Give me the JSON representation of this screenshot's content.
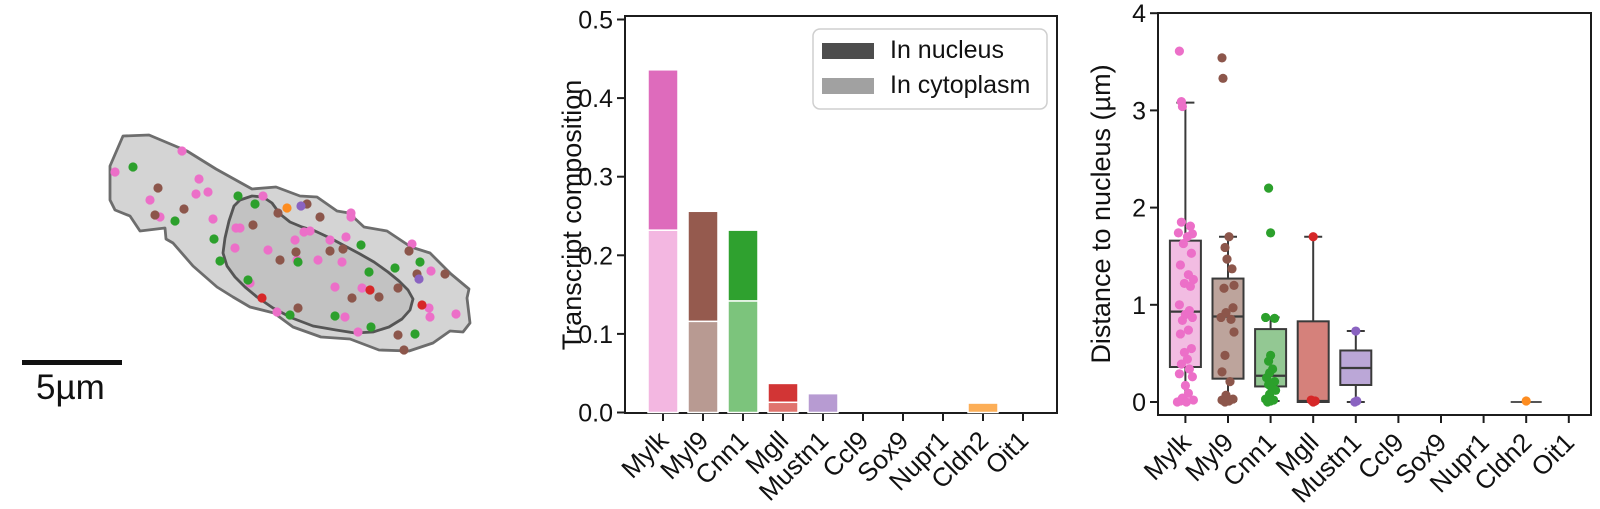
{
  "cell_panel": {
    "scalebar_label": "5µm",
    "membrane_fill": "#d4d4d4",
    "membrane_stroke": "#6d6d6d",
    "nucleus_fill": "#c2c2c2",
    "nucleus_stroke": "#555555",
    "dot_colors": {
      "Mylk": "#ec6fc8",
      "Myl9": "#8c564b",
      "Cnn1": "#2ca02c",
      "Mgll": "#d62728",
      "Mustn1": "#8a63c1",
      "Cldn2": "#fd8c20"
    },
    "membrane_points": [
      [
        123,
        136
      ],
      [
        149,
        135
      ],
      [
        187,
        151
      ],
      [
        216,
        169
      ],
      [
        252,
        189
      ],
      [
        276,
        187
      ],
      [
        300,
        196
      ],
      [
        317,
        197
      ],
      [
        337,
        211
      ],
      [
        349,
        213
      ],
      [
        364,
        227
      ],
      [
        387,
        231
      ],
      [
        411,
        247
      ],
      [
        430,
        253
      ],
      [
        451,
        274
      ],
      [
        469,
        289
      ],
      [
        467,
        298
      ],
      [
        470,
        323
      ],
      [
        463,
        332
      ],
      [
        450,
        331
      ],
      [
        433,
        343
      ],
      [
        409,
        351
      ],
      [
        379,
        350
      ],
      [
        350,
        339
      ],
      [
        321,
        337
      ],
      [
        293,
        327
      ],
      [
        274,
        313
      ],
      [
        250,
        307
      ],
      [
        233,
        297
      ],
      [
        217,
        287
      ],
      [
        193,
        266
      ],
      [
        173,
        243
      ],
      [
        166,
        239
      ],
      [
        165,
        228
      ],
      [
        140,
        231
      ],
      [
        130,
        216
      ],
      [
        115,
        210
      ],
      [
        110,
        200
      ],
      [
        110,
        166
      ]
    ],
    "nucleus_points": [
      [
        234,
        206
      ],
      [
        240,
        200
      ],
      [
        252,
        196
      ],
      [
        263,
        197
      ],
      [
        272,
        203
      ],
      [
        280,
        214
      ],
      [
        290,
        222
      ],
      [
        302,
        227
      ],
      [
        315,
        231
      ],
      [
        330,
        238
      ],
      [
        345,
        246
      ],
      [
        360,
        254
      ],
      [
        374,
        262
      ],
      [
        388,
        272
      ],
      [
        399,
        281
      ],
      [
        408,
        290
      ],
      [
        413,
        299
      ],
      [
        410,
        310
      ],
      [
        402,
        319
      ],
      [
        389,
        327
      ],
      [
        373,
        332
      ],
      [
        355,
        333
      ],
      [
        336,
        330
      ],
      [
        313,
        326
      ],
      [
        292,
        318
      ],
      [
        273,
        308
      ],
      [
        257,
        297
      ],
      [
        245,
        287
      ],
      [
        235,
        277
      ],
      [
        227,
        266
      ],
      [
        223,
        253
      ],
      [
        225,
        238
      ],
      [
        229,
        221
      ]
    ],
    "dots": [
      [
        115,
        172,
        "Mylk"
      ],
      [
        182,
        151,
        "Mylk"
      ],
      [
        199,
        179,
        "Mylk"
      ],
      [
        208,
        192,
        "Mylk"
      ],
      [
        196,
        194,
        "Mylk"
      ],
      [
        150,
        200,
        "Mylk"
      ],
      [
        160,
        217,
        "Mylk"
      ],
      [
        213,
        219,
        "Mylk"
      ],
      [
        236,
        228,
        "Mylk"
      ],
      [
        235,
        248,
        "Mylk"
      ],
      [
        263,
        196,
        "Mylk"
      ],
      [
        240,
        228,
        "Mylk"
      ],
      [
        250,
        283,
        "Mylk"
      ],
      [
        277,
        312,
        "Mylk"
      ],
      [
        268,
        250,
        "Mylk"
      ],
      [
        295,
        240,
        "Mylk"
      ],
      [
        297,
        260,
        "Mylk"
      ],
      [
        304,
        232,
        "Mylk"
      ],
      [
        310,
        231,
        "Mylk"
      ],
      [
        318,
        260,
        "Mylk"
      ],
      [
        330,
        240,
        "Mylk"
      ],
      [
        351,
        213,
        "Mylk"
      ],
      [
        351,
        217,
        "Mylk"
      ],
      [
        346,
        237,
        "Mylk"
      ],
      [
        412,
        244,
        "Mylk"
      ],
      [
        431,
        271,
        "Mylk"
      ],
      [
        335,
        287,
        "Mylk"
      ],
      [
        362,
        288,
        "Mylk"
      ],
      [
        429,
        308,
        "Mylk"
      ],
      [
        430,
        317,
        "Mylk"
      ],
      [
        456,
        314,
        "Mylk"
      ],
      [
        345,
        317,
        "Mylk"
      ],
      [
        358,
        332,
        "Mylk"
      ],
      [
        342,
        262,
        "Mylk"
      ],
      [
        158,
        188,
        "Myl9"
      ],
      [
        155,
        215,
        "Myl9"
      ],
      [
        184,
        209,
        "Myl9"
      ],
      [
        307,
        204,
        "Myl9"
      ],
      [
        278,
        213,
        "Myl9"
      ],
      [
        253,
        225,
        "Myl9"
      ],
      [
        298,
        308,
        "Myl9"
      ],
      [
        280,
        260,
        "Myl9"
      ],
      [
        296,
        252,
        "Myl9"
      ],
      [
        320,
        217,
        "Myl9"
      ],
      [
        343,
        249,
        "Myl9"
      ],
      [
        409,
        251,
        "Myl9"
      ],
      [
        417,
        274,
        "Myl9"
      ],
      [
        445,
        274,
        "Myl9"
      ],
      [
        398,
        288,
        "Myl9"
      ],
      [
        379,
        297,
        "Myl9"
      ],
      [
        352,
        298,
        "Myl9"
      ],
      [
        398,
        335,
        "Myl9"
      ],
      [
        404,
        350,
        "Myl9"
      ],
      [
        330,
        251,
        "Myl9"
      ],
      [
        133,
        167,
        "Cnn1"
      ],
      [
        175,
        221,
        "Cnn1"
      ],
      [
        214,
        239,
        "Cnn1"
      ],
      [
        220,
        261,
        "Cnn1"
      ],
      [
        238,
        196,
        "Cnn1"
      ],
      [
        255,
        204,
        "Cnn1"
      ],
      [
        248,
        280,
        "Cnn1"
      ],
      [
        290,
        315,
        "Cnn1"
      ],
      [
        361,
        245,
        "Cnn1"
      ],
      [
        395,
        268,
        "Cnn1"
      ],
      [
        369,
        272,
        "Cnn1"
      ],
      [
        420,
        262,
        "Cnn1"
      ],
      [
        335,
        316,
        "Cnn1"
      ],
      [
        371,
        327,
        "Cnn1"
      ],
      [
        415,
        334,
        "Cnn1"
      ],
      [
        298,
        262,
        "Cnn1"
      ],
      [
        262,
        298,
        "Mgll"
      ],
      [
        370,
        290,
        "Mgll"
      ],
      [
        422,
        305,
        "Mgll"
      ],
      [
        301,
        206,
        "Mustn1"
      ],
      [
        419,
        279,
        "Mustn1"
      ],
      [
        287,
        208,
        "Cldn2"
      ]
    ]
  },
  "chart_data": [
    {
      "type": "bar",
      "stacked": true,
      "title": "",
      "xlabel": "",
      "ylabel": "Transcript composition",
      "categories": [
        "Mylk",
        "Myl9",
        "Cnn1",
        "Mgll",
        "Mustn1",
        "Ccl9",
        "Sox9",
        "Nupr1",
        "Cldn2",
        "Oit1"
      ],
      "series": [
        {
          "name": "In nucleus",
          "values": [
            0.204,
            0.14,
            0.09,
            0.024,
            0,
            0,
            0,
            0,
            0,
            0
          ]
        },
        {
          "name": "In cytoplasm",
          "values": [
            0.232,
            0.116,
            0.142,
            0.013,
            0.024,
            0,
            0,
            0,
            0.012,
            0
          ]
        }
      ],
      "colors_nucleus": [
        "#de6bbc",
        "#955a4e",
        "#2fa12f",
        "#d23535",
        null,
        null,
        null,
        null,
        null,
        null
      ],
      "colors_cytoplasm": [
        "#f3b7e1",
        "#b89a92",
        "#7cc47c",
        "#e0736e",
        "#b79bd2",
        null,
        null,
        null,
        "#fcae57",
        null
      ],
      "ylim": [
        0,
        0.5
      ],
      "yticks": [
        0,
        0.1,
        0.2,
        0.3,
        0.4,
        0.5
      ],
      "ytick_decimals": 1,
      "grid": false,
      "legend": {
        "position": "upper right",
        "labels": [
          "In nucleus",
          "In cytoplasm"
        ],
        "swatch_colors": [
          "#4d4d4d",
          "#a1a1a1"
        ]
      }
    },
    {
      "type": "box",
      "title": "",
      "xlabel": "",
      "ylabel": "Distance to nucleus (µm)",
      "categories": [
        "Mylk",
        "Myl9",
        "Cnn1",
        "Mgll",
        "Mustn1",
        "Ccl9",
        "Sox9",
        "Nupr1",
        "Cldn2",
        "Oit1"
      ],
      "ylim": [
        0,
        4
      ],
      "yticks": [
        0,
        1,
        2,
        3,
        4
      ],
      "ytick_decimals": 0,
      "grid": false,
      "box_edge_color": "#3a3a3a",
      "boxes": [
        {
          "category": "Mylk",
          "fill": "#f2bce2",
          "dot_color": "#ec6fc8",
          "q1": 0.36,
          "median": 0.93,
          "q3": 1.66,
          "whisker_low": 0.01,
          "whisker_high": 3.08,
          "points": [
            [
              3.61,
              -6
            ],
            [
              3.09,
              -4
            ],
            [
              3.04,
              -3
            ],
            [
              1.85,
              -4
            ],
            [
              1.81,
              5
            ],
            [
              1.74,
              -7
            ],
            [
              1.73,
              7
            ],
            [
              1.7,
              2
            ],
            [
              1.63,
              -2
            ],
            [
              1.53,
              6
            ],
            [
              1.41,
              -5
            ],
            [
              1.31,
              3
            ],
            [
              1.26,
              8
            ],
            [
              1.22,
              -1
            ],
            [
              1.19,
              5
            ],
            [
              1.0,
              -6
            ],
            [
              0.94,
              4
            ],
            [
              0.9,
              0
            ],
            [
              0.87,
              7
            ],
            [
              0.84,
              -3
            ],
            [
              0.74,
              3
            ],
            [
              0.7,
              -5
            ],
            [
              0.55,
              6
            ],
            [
              0.51,
              -1
            ],
            [
              0.44,
              2
            ],
            [
              0.39,
              -4
            ],
            [
              0.34,
              4
            ],
            [
              0.29,
              -6
            ],
            [
              0.26,
              7
            ],
            [
              0.17,
              0
            ],
            [
              0.09,
              3
            ],
            [
              0.04,
              -3
            ],
            [
              0.02,
              8
            ],
            [
              0.01,
              -5
            ],
            [
              0.0,
              1
            ],
            [
              0.0,
              -8
            ]
          ]
        },
        {
          "category": "Myl9",
          "fill": "#bda49c",
          "dot_color": "#8c564b",
          "q1": 0.24,
          "median": 0.88,
          "q3": 1.27,
          "whisker_low": 0.01,
          "whisker_high": 1.7,
          "points": [
            [
              3.54,
              -6
            ],
            [
              3.33,
              -5
            ],
            [
              1.7,
              1
            ],
            [
              1.59,
              -3
            ],
            [
              1.47,
              -1
            ],
            [
              1.37,
              4
            ],
            [
              1.2,
              6
            ],
            [
              1.17,
              -4
            ],
            [
              0.97,
              5
            ],
            [
              0.92,
              -2
            ],
            [
              0.87,
              -7
            ],
            [
              0.85,
              3
            ],
            [
              0.72,
              6
            ],
            [
              0.48,
              -3
            ],
            [
              0.31,
              -6
            ],
            [
              0.21,
              2
            ],
            [
              0.07,
              -2
            ],
            [
              0.03,
              5
            ],
            [
              0.02,
              -6
            ],
            [
              0.01,
              1
            ],
            [
              0.0,
              -3
            ]
          ]
        },
        {
          "category": "Cnn1",
          "fill": "#93c893",
          "dot_color": "#2ca02c",
          "q1": 0.16,
          "median": 0.27,
          "q3": 0.75,
          "whisker_low": 0.01,
          "whisker_high": 0.87,
          "points": [
            [
              2.2,
              -2
            ],
            [
              1.74,
              0
            ],
            [
              0.87,
              -5
            ],
            [
              0.86,
              4
            ],
            [
              0.48,
              0
            ],
            [
              0.42,
              -2
            ],
            [
              0.34,
              2
            ],
            [
              0.3,
              -1
            ],
            [
              0.25,
              -4
            ],
            [
              0.21,
              4
            ],
            [
              0.18,
              -2
            ],
            [
              0.15,
              1
            ],
            [
              0.12,
              5
            ],
            [
              0.08,
              -1
            ],
            [
              0.03,
              -5
            ],
            [
              0.02,
              3
            ],
            [
              0.01,
              0
            ],
            [
              0.0,
              -3
            ]
          ]
        },
        {
          "category": "Mgll",
          "fill": "#d5817b",
          "dot_color": "#d62728",
          "q1": 0.0,
          "median": 0.01,
          "q3": 0.83,
          "whisker_low": 0.0,
          "whisker_high": 1.7,
          "points": [
            [
              1.7,
              0
            ],
            [
              0.02,
              -2
            ],
            [
              0.01,
              2
            ],
            [
              0.0,
              0
            ]
          ]
        },
        {
          "category": "Mustn1",
          "fill": "#bba7d7",
          "dot_color": "#8a63c1",
          "q1": 0.175,
          "median": 0.35,
          "q3": 0.53,
          "whisker_low": 0.0,
          "whisker_high": 0.73,
          "points": [
            [
              0.73,
              0
            ],
            [
              0.01,
              1
            ],
            [
              0.0,
              -1
            ]
          ]
        },
        {
          "category": "Ccl9",
          "fill": null,
          "dot_color": null,
          "points": []
        },
        {
          "category": "Sox9",
          "fill": null,
          "dot_color": null,
          "points": []
        },
        {
          "category": "Nupr1",
          "fill": null,
          "dot_color": null,
          "points": []
        },
        {
          "category": "Cldn2",
          "fill": null,
          "dot_color": "#fd8c20",
          "collapsed_at": 0,
          "points": [
            [
              0.01,
              0
            ]
          ]
        },
        {
          "category": "Oit1",
          "fill": null,
          "dot_color": null,
          "points": []
        }
      ]
    }
  ]
}
